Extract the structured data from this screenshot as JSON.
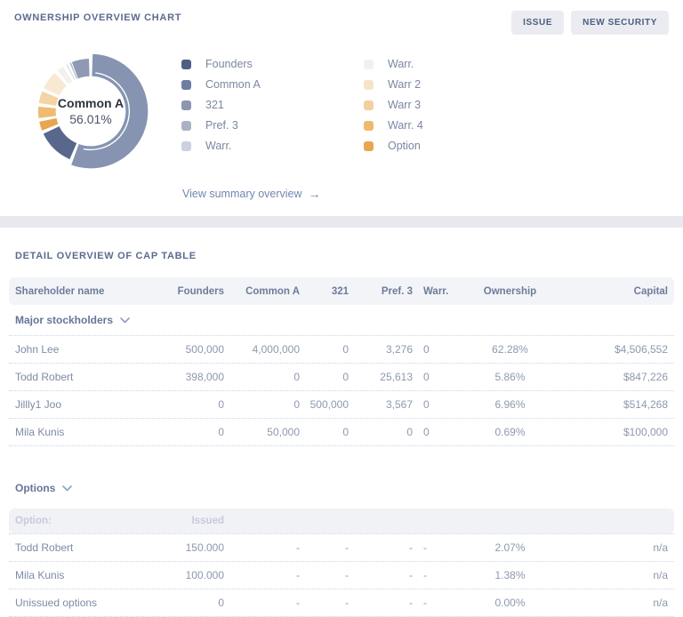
{
  "header": {
    "title": "OWNERSHIP OVERVIEW CHART",
    "buttons": [
      {
        "label": "ISSUE"
      },
      {
        "label": "NEW SECURITY"
      }
    ]
  },
  "icons": {
    "arrow_right": "→"
  },
  "chart_data": {
    "type": "pie",
    "donut": true,
    "center_label": {
      "title": "Common A",
      "value": "56.01%"
    },
    "link": "View summary overview",
    "legend_position": "right",
    "segments": [
      {
        "label": "Common A",
        "value": 56.01,
        "color": "#8694b2",
        "highlight": true
      },
      {
        "label": "Founders",
        "value": 12.4,
        "color": "#5a678c"
      },
      {
        "label": "Option",
        "value": 3.9,
        "color": "#e7a74f"
      },
      {
        "label": "Warr. 4",
        "value": 4.6,
        "color": "#eebb70"
      },
      {
        "label": "Warr 3",
        "value": 4.8,
        "color": "#f4d4a4"
      },
      {
        "label": "Warr 2",
        "value": 6.8,
        "color": "#f8ead2"
      },
      {
        "label": "Warr.",
        "value": 3.2,
        "color": "#f3f1ee"
      },
      {
        "label": "Warr.",
        "value": 1.2,
        "color": "#d9dde7"
      },
      {
        "label": "Pref. 3",
        "value": 0.7,
        "color": "#aab2c5"
      },
      {
        "label": "321",
        "value": 6.4,
        "color": "#8e99b4"
      }
    ],
    "legend": {
      "left": [
        {
          "label": "Founders",
          "color": "#505e84"
        },
        {
          "label": "Common A",
          "color": "#6e7da1"
        },
        {
          "label": "321",
          "color": "#8c96b1"
        },
        {
          "label": "Pref. 3",
          "color": "#abb2c5"
        },
        {
          "label": "Warr.",
          "color": "#ccd1de"
        }
      ],
      "right": [
        {
          "label": "Warr.",
          "color": "#f1f1f3"
        },
        {
          "label": "Warr 2",
          "color": "#f6e4c7"
        },
        {
          "label": "Warr 3",
          "color": "#f3d0a0"
        },
        {
          "label": "Warr. 4",
          "color": "#efba6e"
        },
        {
          "label": "Option",
          "color": "#e9a64f"
        }
      ]
    }
  },
  "table": {
    "title": "DETAIL OVERVIEW OF CAP TABLE",
    "columns": [
      "Shareholder name",
      "Founders",
      "Common A",
      "321",
      "Pref. 3",
      "Warr.",
      "Ownership",
      "Capital"
    ],
    "groups": [
      {
        "label": "Major stockholders",
        "rows": [
          [
            "John Lee",
            "500,000",
            "4,000,000",
            "0",
            "3,276",
            "0",
            "62.28%",
            "$4,506,552"
          ],
          [
            "Todd Robert",
            "398,000",
            "0",
            "0",
            "25,613",
            "0",
            "5.86%",
            "$847,226"
          ],
          [
            "Jillly1 Joo",
            "0",
            "0",
            "500,000",
            "3,567",
            "0",
            "6.96%",
            "$514,268"
          ],
          [
            "Mila Kunis",
            "0",
            "50,000",
            "0",
            "0",
            "0",
            "0.69%",
            "$100,000"
          ]
        ]
      },
      {
        "label": "Options",
        "subheader": [
          "Option:",
          "Issued",
          "",
          "",
          "",
          "",
          "",
          ""
        ],
        "rows": [
          [
            "Todd Robert",
            "150.000",
            "-",
            "-",
            "-",
            "-",
            "2.07%",
            "n/a"
          ],
          [
            "Mila Kunis",
            "100.000",
            "-",
            "-",
            "-",
            "-",
            "1.38%",
            "n/a"
          ],
          [
            "Unissued options",
            "0",
            "-",
            "-",
            "-",
            "-",
            "0.00%",
            "n/a"
          ]
        ]
      }
    ]
  }
}
